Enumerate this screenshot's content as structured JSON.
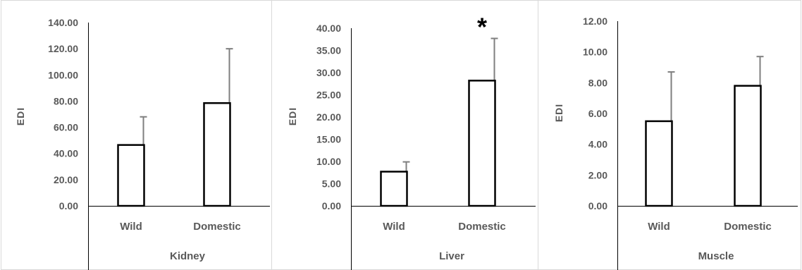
{
  "chart_data": [
    {
      "type": "bar",
      "categories": [
        "Wild",
        "Domestic"
      ],
      "values": [
        46.5,
        78.5
      ],
      "error_plus": [
        21.5,
        41.5
      ],
      "xlabel": "Kidney",
      "ylabel": "EDI",
      "ylim": [
        0,
        140
      ],
      "yticks": [
        "0.00",
        "20.00",
        "40.00",
        "60.00",
        "80.00",
        "100.00",
        "120.00",
        "140.00"
      ],
      "annotations": []
    },
    {
      "type": "bar",
      "categories": [
        "Wild",
        "Domestic"
      ],
      "values": [
        7.7,
        28.2
      ],
      "error_plus": [
        2.2,
        9.5
      ],
      "xlabel": "Liver",
      "ylabel": "EDI",
      "ylim": [
        0,
        40
      ],
      "yticks": [
        "0.00",
        "5.00",
        "10.00",
        "15.00",
        "20.00",
        "25.00",
        "30.00",
        "35.00",
        "40.00"
      ],
      "annotations": [
        {
          "category": "Domestic",
          "text": "*"
        }
      ]
    },
    {
      "type": "bar",
      "categories": [
        "Wild",
        "Domestic"
      ],
      "values": [
        5.5,
        7.8
      ],
      "error_plus": [
        3.2,
        1.9
      ],
      "xlabel": "Muscle",
      "ylabel": "EDI",
      "ylim": [
        0,
        12
      ],
      "yticks": [
        "0.00",
        "2.00",
        "4.00",
        "6.00",
        "8.00",
        "10.00",
        "12.00"
      ],
      "annotations": []
    }
  ],
  "colors": {
    "bar_fill": "#ffffff",
    "bar_stroke": "#000000",
    "error_bar": "#7f7f7f",
    "axis": "#000000",
    "text": "#595959",
    "frame": "#d9d9d9"
  }
}
